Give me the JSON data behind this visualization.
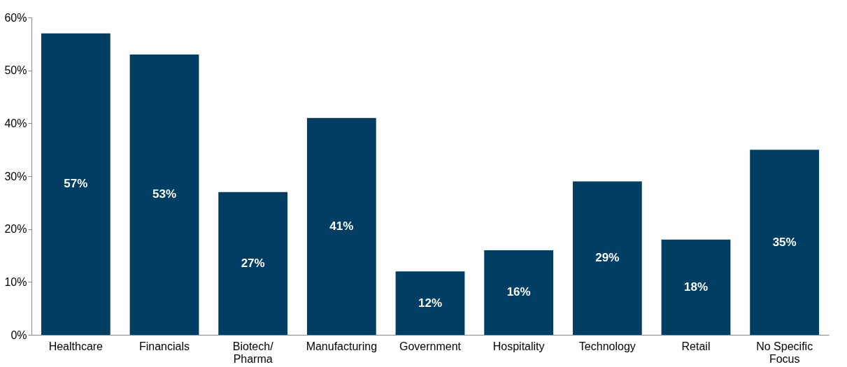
{
  "chart_data": {
    "type": "bar",
    "categories": [
      "Healthcare",
      "Financials",
      "Biotech/ Pharma",
      "Manufacturing",
      "Government",
      "Hospitality",
      "Technology",
      "Retail",
      "No Specific Focus"
    ],
    "values": [
      57,
      53,
      27,
      41,
      12,
      16,
      29,
      18,
      35
    ],
    "value_labels": [
      "57%",
      "53%",
      "27%",
      "41%",
      "12%",
      "16%",
      "29%",
      "18%",
      "35%"
    ],
    "color": "#003f63",
    "ylim": [
      0,
      60
    ],
    "yticks": [
      {
        "value": 0,
        "label": "0%"
      },
      {
        "value": 10,
        "label": "10%"
      },
      {
        "value": 20,
        "label": "20%"
      },
      {
        "value": 30,
        "label": "30%"
      },
      {
        "value": 40,
        "label": "40%"
      },
      {
        "value": 50,
        "label": "50%"
      },
      {
        "value": 60,
        "label": "60%"
      }
    ],
    "grid": false
  }
}
